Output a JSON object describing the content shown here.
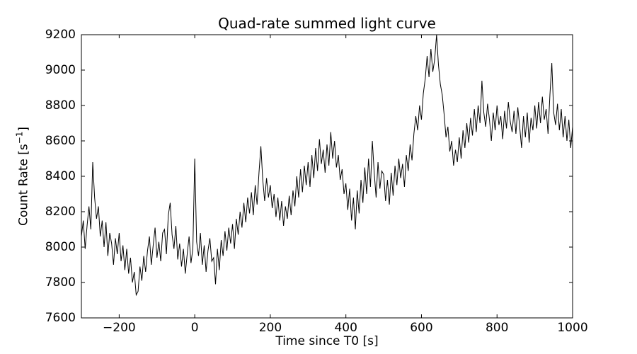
{
  "title": "Quad-rate summed light curve",
  "xlabel": "Time since T0 [s]",
  "ylabel": {
    "prefix": "Count Rate [s",
    "sup": "−1",
    "suffix": "]"
  },
  "chart_data": {
    "type": "line",
    "title": "Quad-rate summed light curve",
    "xlabel": "Time since T0 [s]",
    "ylabel": "Count Rate [s^-1]",
    "xlim": [
      -300,
      1000
    ],
    "ylim": [
      7600,
      9200
    ],
    "grid": false,
    "legend": "none",
    "line_color": "#000000",
    "line_width": 1,
    "background": "#ffffff",
    "xticks": {
      "values": [
        -200,
        0,
        200,
        400,
        600,
        800,
        1000
      ],
      "labels": [
        "−200",
        "0",
        "200",
        "400",
        "600",
        "800",
        "1000"
      ]
    },
    "yticks": {
      "values": [
        7600,
        7800,
        8000,
        8200,
        8400,
        8600,
        8800,
        9000,
        9200
      ],
      "labels": [
        "7600",
        "7800",
        "8000",
        "8200",
        "8400",
        "8600",
        "8800",
        "9000",
        "9200"
      ]
    },
    "x_start": -300,
    "x_step": 5,
    "y_values": [
      8060,
      8150,
      7990,
      8120,
      8230,
      8100,
      8480,
      8280,
      8160,
      8230,
      8060,
      8150,
      8000,
      8140,
      7950,
      8080,
      8020,
      7900,
      8050,
      7960,
      8080,
      7920,
      8010,
      7870,
      7990,
      7850,
      7940,
      7800,
      7860,
      7730,
      7750,
      7890,
      7810,
      7950,
      7860,
      7980,
      8060,
      7900,
      8010,
      8110,
      7940,
      8030,
      7920,
      8080,
      8100,
      7960,
      8180,
      8250,
      8070,
      7990,
      8120,
      7930,
      8020,
      7890,
      7990,
      7850,
      7960,
      8060,
      7910,
      7990,
      8500,
      8030,
      7950,
      8080,
      7900,
      8010,
      7860,
      7980,
      8050,
      7920,
      7940,
      7790,
      7990,
      7870,
      8040,
      7950,
      8090,
      7980,
      8110,
      8020,
      8130,
      7990,
      8160,
      8070,
      8200,
      8110,
      8250,
      8140,
      8280,
      8190,
      8310,
      8180,
      8350,
      8240,
      8420,
      8570,
      8380,
      8260,
      8390,
      8280,
      8350,
      8220,
      8300,
      8170,
      8280,
      8150,
      8260,
      8120,
      8230,
      8160,
      8290,
      8180,
      8320,
      8230,
      8400,
      8280,
      8440,
      8310,
      8460,
      8350,
      8480,
      8340,
      8520,
      8390,
      8560,
      8430,
      8610,
      8470,
      8550,
      8420,
      8580,
      8460,
      8650,
      8500,
      8600,
      8450,
      8520,
      8380,
      8440,
      8300,
      8360,
      8210,
      8330,
      8150,
      8280,
      8100,
      8320,
      8190,
      8380,
      8250,
      8450,
      8300,
      8500,
      8340,
      8600,
      8420,
      8280,
      8480,
      8330,
      8430,
      8410,
      8260,
      8380,
      8240,
      8420,
      8290,
      8460,
      8350,
      8500,
      8390,
      8470,
      8340,
      8520,
      8430,
      8580,
      8490,
      8640,
      8740,
      8660,
      8800,
      8720,
      8870,
      8950,
      9080,
      8960,
      9120,
      8990,
      9060,
      9200,
      9030,
      8920,
      8860,
      8750,
      8620,
      8680,
      8540,
      8600,
      8460,
      8550,
      8480,
      8620,
      8500,
      8660,
      8560,
      8700,
      8590,
      8730,
      8630,
      8780,
      8650,
      8800,
      8700,
      8940,
      8760,
      8680,
      8810,
      8720,
      8600,
      8760,
      8660,
      8800,
      8690,
      8740,
      8610,
      8770,
      8670,
      8820,
      8710,
      8650,
      8770,
      8640,
      8790,
      8680,
      8560,
      8740,
      8620,
      8760,
      8590,
      8730,
      8660,
      8800,
      8670,
      8820,
      8700,
      8850,
      8720,
      8780,
      8640,
      8860,
      9040,
      8760,
      8690,
      8810,
      8660,
      8780,
      8620,
      8740,
      8600,
      8720,
      8560,
      8680
    ]
  }
}
